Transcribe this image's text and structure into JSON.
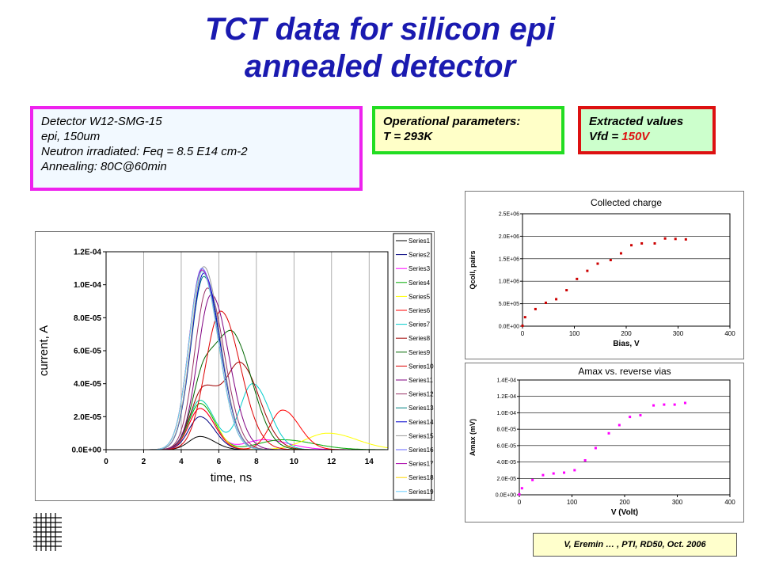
{
  "title": {
    "line1": "TCT data for silicon epi",
    "line2": "annealed detector"
  },
  "detector_box": {
    "lines": [
      "Detector W12-SMG-15",
      "epi, 150um",
      "Neutron irradiated: Feq = 8.5 E14 cm-2",
      "Annealing:  80C@60min"
    ]
  },
  "operational_box": {
    "line1": "Operational parameters:",
    "line2": "T = 293K"
  },
  "extracted_box": {
    "line1": "Extracted values",
    "line2_prefix": "Vfd = ",
    "line2_value": "150V"
  },
  "credit": "V, Eremin … , PTI, RD50, Oct. 2006",
  "colors": {
    "title": "#1a1ab0",
    "detector_border": "#ee22ee",
    "oper_border": "#22dd22",
    "extract_border": "#dd1111",
    "charge_points": "#cc0000",
    "amax_points": "#ff00ff"
  },
  "chart_data": [
    {
      "type": "line",
      "xlabel": "time, ns",
      "ylabel": "current, A",
      "xlim": [
        0,
        15
      ],
      "ylim": [
        0,
        0.00012
      ],
      "xticks": [
        "0",
        "2",
        "4",
        "6",
        "8",
        "10",
        "12",
        "14"
      ],
      "yticks": [
        "0.0E+00",
        "2.0E-05",
        "4.0E-05",
        "6.0E-05",
        "8.0E-05",
        "1.0E-04",
        "1.2E-04"
      ],
      "legend_position": "right",
      "grid": "vertical",
      "series": [
        {
          "name": "Series1",
          "color": "#000000",
          "peaks": [
            [
              5.0,
              8e-06,
              0.7
            ]
          ]
        },
        {
          "name": "Series2",
          "color": "#000080",
          "peaks": [
            [
              5.0,
              2e-05,
              0.7
            ]
          ]
        },
        {
          "name": "Series3",
          "color": "#ff00ff",
          "peaks": [
            [
              5.0,
              2.5e-05,
              0.7
            ],
            [
              8.4,
              6e-06,
              1.2
            ]
          ]
        },
        {
          "name": "Series4",
          "color": "#00aa00",
          "peaks": [
            [
              5.0,
              2.8e-05,
              0.7
            ],
            [
              9.4,
              6e-06,
              1.5
            ]
          ]
        },
        {
          "name": "Series5",
          "color": "#ffff00",
          "peaks": [
            [
              5.0,
              3e-05,
              0.7
            ],
            [
              11.8,
              1e-05,
              1.4
            ]
          ]
        },
        {
          "name": "Series6",
          "color": "#ff0000",
          "peaks": [
            [
              5.0,
              2.5e-05,
              0.7
            ],
            [
              9.4,
              2.4e-05,
              0.8
            ]
          ]
        },
        {
          "name": "Series7",
          "color": "#00cccc",
          "peaks": [
            [
              5.0,
              3e-05,
              0.7
            ],
            [
              7.8,
              4e-05,
              0.8
            ]
          ]
        },
        {
          "name": "Series8",
          "color": "#a00000",
          "peaks": [
            [
              5.2,
              3.7e-05,
              0.8
            ],
            [
              7.2,
              5e-05,
              0.9
            ]
          ]
        },
        {
          "name": "Series9",
          "color": "#006600",
          "peaks": [
            [
              5.3,
              5e-05,
              0.8
            ],
            [
              6.9,
              6e-05,
              0.9
            ]
          ]
        },
        {
          "name": "Series10",
          "color": "#dd0000",
          "peaks": [
            [
              6.1,
              8.4e-05,
              0.95
            ]
          ]
        },
        {
          "name": "Series11",
          "color": "#800080",
          "peaks": [
            [
              5.6,
              9.4e-05,
              0.85
            ]
          ]
        },
        {
          "name": "Series12",
          "color": "#993366",
          "peaks": [
            [
              5.4,
              9.8e-05,
              0.8
            ]
          ]
        },
        {
          "name": "Series13",
          "color": "#008080",
          "peaks": [
            [
              5.2,
              0.000105,
              0.8
            ]
          ]
        },
        {
          "name": "Series14",
          "color": "#0000cc",
          "peaks": [
            [
              5.2,
              0.000107,
              0.8
            ]
          ]
        },
        {
          "name": "Series15",
          "color": "#999999",
          "peaks": [
            [
              5.2,
              0.000111,
              0.8
            ]
          ]
        },
        {
          "name": "Series16",
          "color": "#6666ff",
          "peaks": [
            [
              5.1,
              0.00011,
              0.8
            ]
          ]
        },
        {
          "name": "Series17",
          "color": "#aa00aa",
          "peaks": [
            [
              5.1,
              0.000109,
              0.8
            ]
          ]
        },
        {
          "name": "Series18",
          "color": "#ffd700",
          "peaks": [
            [
              5.1,
              0.000108,
              0.8
            ]
          ]
        },
        {
          "name": "Series19",
          "color": "#66ccff",
          "peaks": [
            [
              5.1,
              0.000108,
              0.8
            ]
          ]
        }
      ]
    },
    {
      "type": "scatter",
      "title": "Collected charge",
      "xlabel": "Bias, V",
      "ylabel": "Qcoll, pairs",
      "xlim": [
        0,
        400
      ],
      "ylim": [
        0,
        2500000
      ],
      "xticks": [
        "0",
        "100",
        "200",
        "300",
        "400"
      ],
      "yticks": [
        "0.0E+00",
        "5.0E+05",
        "1.0E+06",
        "1.5E+06",
        "2.0E+06",
        "2.5E+06"
      ],
      "marker_color": "#cc0000",
      "x": [
        0,
        5,
        25,
        45,
        65,
        85,
        105,
        125,
        145,
        170,
        190,
        210,
        230,
        255,
        275,
        295,
        315
      ],
      "y": [
        10000,
        200000,
        380000,
        520000,
        600000,
        800000,
        1050000,
        1230000,
        1390000,
        1470000,
        1620000,
        1800000,
        1840000,
        1840000,
        1950000,
        1940000,
        1930000
      ]
    },
    {
      "type": "scatter",
      "title": "Amax vs. reverse vias",
      "xlabel": "V (Volt)",
      "ylabel": "Amax (mV)",
      "xlim": [
        0,
        400
      ],
      "ylim": [
        0,
        0.00014
      ],
      "xticks": [
        "0",
        "100",
        "200",
        "300",
        "400"
      ],
      "yticks": [
        "0.0E+00",
        "2.0E-05",
        "4.0E-05",
        "6.0E-05",
        "8.0E-05",
        "1.0E-04",
        "1.2E-04",
        "1.4E-04"
      ],
      "marker_color": "#ff00ff",
      "x": [
        0,
        5,
        25,
        45,
        65,
        85,
        105,
        125,
        145,
        170,
        190,
        210,
        230,
        255,
        275,
        295,
        315
      ],
      "y": [
        5e-07,
        8e-06,
        1.8e-05,
        2.4e-05,
        2.6e-05,
        2.7e-05,
        3e-05,
        4.2e-05,
        5.7e-05,
        7.5e-05,
        8.5e-05,
        9.5e-05,
        9.7e-05,
        0.000109,
        0.00011,
        0.00011,
        0.000112
      ]
    }
  ]
}
